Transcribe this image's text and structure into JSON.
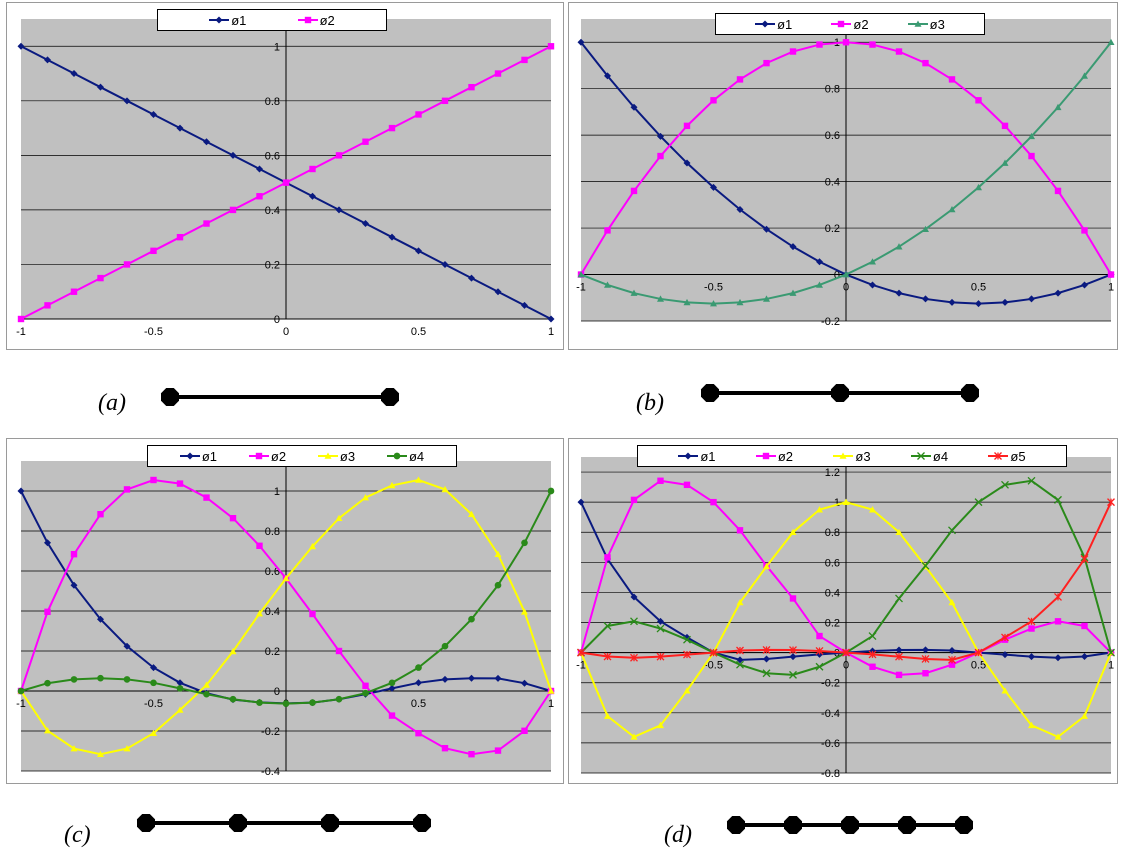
{
  "captions": [
    "(a)",
    "(b)",
    "(c)",
    "(d)"
  ],
  "element_nodes": [
    2,
    3,
    4,
    5
  ],
  "chart_data": [
    {
      "type": "line",
      "title": "",
      "x_ticks": [
        "-1",
        "-0.5",
        "0",
        "0.5",
        "1"
      ],
      "y_ticks": [
        "0",
        "0.2",
        "0.4",
        "0.6",
        "0.8",
        "1"
      ],
      "xlim": [
        -1,
        1
      ],
      "ylim": [
        0,
        1.1
      ],
      "grid": true,
      "legend": "top",
      "series": [
        {
          "name": "ø1",
          "color": "#0a1a80",
          "marker": "diamond",
          "x": [
            -1,
            -0.9,
            -0.8,
            -0.7,
            -0.6,
            -0.5,
            -0.4,
            -0.3,
            -0.2,
            -0.1,
            0,
            0.1,
            0.2,
            0.3,
            0.4,
            0.5,
            0.6,
            0.7,
            0.8,
            0.9,
            1
          ],
          "y": [
            1,
            0.95,
            0.9,
            0.85,
            0.8,
            0.75,
            0.7,
            0.65,
            0.6,
            0.55,
            0.5,
            0.45,
            0.4,
            0.35,
            0.3,
            0.25,
            0.2,
            0.15,
            0.1,
            0.05,
            0
          ]
        },
        {
          "name": "ø2",
          "color": "#ff00ff",
          "marker": "square",
          "x": [
            -1,
            -0.9,
            -0.8,
            -0.7,
            -0.6,
            -0.5,
            -0.4,
            -0.3,
            -0.2,
            -0.1,
            0,
            0.1,
            0.2,
            0.3,
            0.4,
            0.5,
            0.6,
            0.7,
            0.8,
            0.9,
            1
          ],
          "y": [
            0,
            0.05,
            0.1,
            0.15,
            0.2,
            0.25,
            0.3,
            0.35,
            0.4,
            0.45,
            0.5,
            0.55,
            0.6,
            0.65,
            0.7,
            0.75,
            0.8,
            0.85,
            0.9,
            0.95,
            1
          ]
        }
      ]
    },
    {
      "type": "line",
      "title": "",
      "x_ticks": [
        "-1",
        "-0.5",
        "0",
        "0.5",
        "1"
      ],
      "y_ticks": [
        "-0.2",
        "0",
        "0.2",
        "0.4",
        "0.6",
        "0.8",
        "1"
      ],
      "xlim": [
        -1,
        1
      ],
      "ylim": [
        -0.2,
        1.1
      ],
      "grid": true,
      "legend": "top",
      "series": [
        {
          "name": "ø1",
          "color": "#0a1a80",
          "marker": "diamond",
          "x": [
            -1,
            -0.9,
            -0.8,
            -0.7,
            -0.6,
            -0.5,
            -0.4,
            -0.3,
            -0.2,
            -0.1,
            0,
            0.1,
            0.2,
            0.3,
            0.4,
            0.5,
            0.6,
            0.7,
            0.8,
            0.9,
            1
          ],
          "y": [
            1,
            0.855,
            0.72,
            0.595,
            0.48,
            0.375,
            0.28,
            0.195,
            0.12,
            0.055,
            0,
            -0.045,
            -0.08,
            -0.105,
            -0.12,
            -0.125,
            -0.12,
            -0.105,
            -0.08,
            -0.045,
            0
          ]
        },
        {
          "name": "ø2",
          "color": "#ff00ff",
          "marker": "square",
          "x": [
            -1,
            -0.9,
            -0.8,
            -0.7,
            -0.6,
            -0.5,
            -0.4,
            -0.3,
            -0.2,
            -0.1,
            0,
            0.1,
            0.2,
            0.3,
            0.4,
            0.5,
            0.6,
            0.7,
            0.8,
            0.9,
            1
          ],
          "y": [
            0,
            0.19,
            0.36,
            0.51,
            0.64,
            0.75,
            0.84,
            0.91,
            0.96,
            0.99,
            1,
            0.99,
            0.96,
            0.91,
            0.84,
            0.75,
            0.64,
            0.51,
            0.36,
            0.19,
            0
          ]
        },
        {
          "name": "ø3",
          "color": "#3a9a72",
          "marker": "triangle",
          "x": [
            -1,
            -0.9,
            -0.8,
            -0.7,
            -0.6,
            -0.5,
            -0.4,
            -0.3,
            -0.2,
            -0.1,
            0,
            0.1,
            0.2,
            0.3,
            0.4,
            0.5,
            0.6,
            0.7,
            0.8,
            0.9,
            1
          ],
          "y": [
            0,
            -0.045,
            -0.08,
            -0.105,
            -0.12,
            -0.125,
            -0.12,
            -0.105,
            -0.08,
            -0.045,
            0,
            0.055,
            0.12,
            0.195,
            0.28,
            0.375,
            0.48,
            0.595,
            0.72,
            0.855,
            1
          ]
        }
      ]
    },
    {
      "type": "line",
      "title": "",
      "x_ticks": [
        "-1",
        "-0.5",
        "0",
        "0.5",
        "1"
      ],
      "y_ticks": [
        "-0.4",
        "-0.2",
        "0",
        "0.2",
        "0.4",
        "0.6",
        "0.8",
        "1"
      ],
      "xlim": [
        -1,
        1
      ],
      "ylim": [
        -0.4,
        1.15
      ],
      "grid": true,
      "legend": "top",
      "series": [
        {
          "name": "ø1",
          "color": "#0a1a80",
          "marker": "diamond",
          "x": [
            -1,
            -0.9,
            -0.8,
            -0.7,
            -0.6,
            -0.5,
            -0.4,
            -0.3,
            -0.2,
            -0.1,
            0,
            0.1,
            0.2,
            0.3,
            0.4,
            0.5,
            0.6,
            0.7,
            0.8,
            0.9,
            1
          ],
          "y": [
            1,
            0.741,
            0.529,
            0.359,
            0.224,
            0.117,
            0.041,
            -0.011,
            -0.043,
            -0.057,
            -0.062,
            -0.058,
            -0.041,
            -0.016,
            0.013,
            0.041,
            0.058,
            0.064,
            0.063,
            0.039,
            0
          ]
        },
        {
          "name": "ø2",
          "color": "#ff00ff",
          "marker": "square",
          "x": [
            -1,
            -0.9,
            -0.8,
            -0.7,
            -0.6,
            -0.5,
            -0.4,
            -0.3,
            -0.2,
            -0.1,
            0,
            0.1,
            0.2,
            0.3,
            0.4,
            0.5,
            0.6,
            0.7,
            0.8,
            0.9,
            1
          ],
          "y": [
            0,
            0.396,
            0.684,
            0.884,
            1.008,
            1.055,
            1.037,
            0.967,
            0.864,
            0.726,
            0.563,
            0.385,
            0.2,
            0.026,
            -0.123,
            -0.211,
            -0.286,
            -0.316,
            -0.298,
            -0.199,
            0
          ]
        },
        {
          "name": "ø3",
          "color": "#ffff00",
          "marker": "triangle",
          "x": [
            -1,
            -0.9,
            -0.8,
            -0.7,
            -0.6,
            -0.5,
            -0.4,
            -0.3,
            -0.2,
            -0.1,
            0,
            0.1,
            0.2,
            0.3,
            0.4,
            0.5,
            0.6,
            0.7,
            0.8,
            0.9,
            1
          ],
          "y": [
            0,
            -0.198,
            -0.288,
            -0.316,
            -0.288,
            -0.211,
            -0.095,
            0.03,
            0.198,
            0.387,
            0.563,
            0.723,
            0.864,
            0.967,
            1.028,
            1.055,
            1.008,
            0.884,
            0.684,
            0.396,
            0
          ]
        },
        {
          "name": "ø4",
          "color": "#2a8a1a",
          "marker": "circle",
          "x": [
            -1,
            -0.9,
            -0.8,
            -0.7,
            -0.6,
            -0.5,
            -0.4,
            -0.3,
            -0.2,
            -0.1,
            0,
            0.1,
            0.2,
            0.3,
            0.4,
            0.5,
            0.6,
            0.7,
            0.8,
            0.9,
            1
          ],
          "y": [
            0,
            0.039,
            0.058,
            0.064,
            0.058,
            0.041,
            0.013,
            -0.016,
            -0.041,
            -0.058,
            -0.063,
            -0.058,
            -0.041,
            -0.011,
            0.041,
            0.117,
            0.224,
            0.359,
            0.529,
            0.741,
            1
          ]
        }
      ]
    },
    {
      "type": "line",
      "title": "",
      "x_ticks": [
        "-1",
        "-0.5",
        "0",
        "0.5",
        "1"
      ],
      "y_ticks": [
        "-0.8",
        "-0.6",
        "-0.4",
        "-0.2",
        "0",
        "0.2",
        "0.4",
        "0.6",
        "0.8",
        "1",
        "1.2"
      ],
      "xlim": [
        -1,
        1
      ],
      "ylim": [
        -0.8,
        1.3
      ],
      "grid": true,
      "legend": "top",
      "series": [
        {
          "name": "ø1",
          "color": "#0a1a80",
          "marker": "diamond",
          "x": [
            -1,
            -0.9,
            -0.8,
            -0.7,
            -0.6,
            -0.5,
            -0.4,
            -0.3,
            -0.2,
            -0.1,
            0,
            0.1,
            0.2,
            0.3,
            0.4,
            0.5,
            0.6,
            0.7,
            0.8,
            0.9,
            1
          ],
          "y": [
            1,
            0.622,
            0.37,
            0.208,
            0.101,
            0,
            -0.048,
            -0.042,
            -0.027,
            -0.012,
            0,
            0.011,
            0.017,
            0.018,
            0.014,
            0,
            -0.013,
            -0.027,
            -0.034,
            -0.026,
            0
          ]
        },
        {
          "name": "ø2",
          "color": "#ff00ff",
          "marker": "square",
          "x": [
            -1,
            -0.9,
            -0.8,
            -0.7,
            -0.6,
            -0.5,
            -0.4,
            -0.3,
            -0.2,
            -0.1,
            0,
            0.1,
            0.2,
            0.3,
            0.4,
            0.5,
            0.6,
            0.7,
            0.8,
            0.9,
            1
          ],
          "y": [
            0,
            0.633,
            1.015,
            1.142,
            1.115,
            1.0,
            0.813,
            0.577,
            0.36,
            0.11,
            0,
            -0.094,
            -0.148,
            -0.137,
            -0.08,
            0,
            0.086,
            0.16,
            0.208,
            0.177,
            0
          ]
        },
        {
          "name": "ø3",
          "color": "#ffff00",
          "marker": "triangle",
          "x": [
            -1,
            -0.9,
            -0.8,
            -0.7,
            -0.6,
            -0.5,
            -0.4,
            -0.3,
            -0.2,
            -0.1,
            0,
            0.1,
            0.2,
            0.3,
            0.4,
            0.5,
            0.6,
            0.7,
            0.8,
            0.9,
            1
          ],
          "y": [
            0,
            -0.422,
            -0.56,
            -0.483,
            -0.253,
            0,
            0.333,
            0.573,
            0.8,
            0.95,
            1,
            0.95,
            0.8,
            0.573,
            0.333,
            0,
            -0.253,
            -0.483,
            -0.56,
            -0.422,
            0
          ]
        },
        {
          "name": "ø4",
          "color": "#2a8a1a",
          "marker": "x",
          "x": [
            -1,
            -0.9,
            -0.8,
            -0.7,
            -0.6,
            -0.5,
            -0.4,
            -0.3,
            -0.2,
            -0.1,
            0,
            0.1,
            0.2,
            0.3,
            0.4,
            0.5,
            0.6,
            0.7,
            0.8,
            0.9,
            1
          ],
          "y": [
            0,
            0.177,
            0.208,
            0.16,
            0.086,
            0,
            -0.08,
            -0.137,
            -0.148,
            -0.094,
            0,
            0.11,
            0.36,
            0.577,
            0.813,
            1.0,
            1.115,
            1.142,
            1.015,
            0.633,
            0
          ]
        },
        {
          "name": "ø5",
          "color": "#ff2020",
          "marker": "asterisk",
          "x": [
            -1,
            -0.9,
            -0.8,
            -0.7,
            -0.6,
            -0.5,
            -0.4,
            -0.3,
            -0.2,
            -0.1,
            0,
            0.1,
            0.2,
            0.3,
            0.4,
            0.5,
            0.6,
            0.7,
            0.8,
            0.9,
            1
          ],
          "y": [
            0,
            -0.026,
            -0.034,
            -0.027,
            -0.013,
            0,
            0.014,
            0.018,
            0.017,
            0.011,
            0,
            -0.012,
            -0.027,
            -0.042,
            -0.048,
            0,
            0.101,
            0.208,
            0.37,
            0.622,
            1
          ]
        }
      ]
    }
  ]
}
